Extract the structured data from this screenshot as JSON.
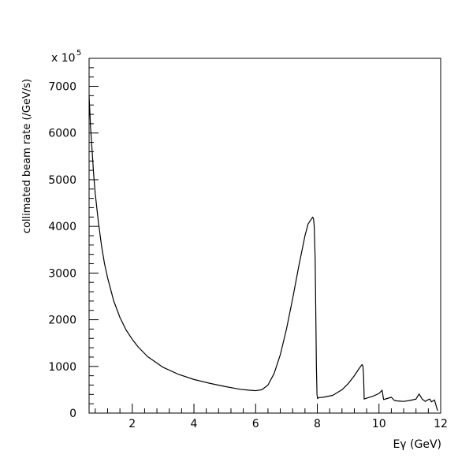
{
  "chart_data": {
    "type": "line",
    "title": "",
    "xlabel": "Eγ (GeV)",
    "ylabel": "collimated beam rate (/GeV/s)",
    "y_multiplier_label": "x 10",
    "y_multiplier_exponent": "5",
    "xlim": [
      0.6,
      12
    ],
    "ylim": [
      0,
      7600
    ],
    "x_ticks": [
      2,
      4,
      6,
      8,
      10,
      12
    ],
    "y_ticks": [
      0,
      1000,
      2000,
      3000,
      4000,
      5000,
      6000,
      7000
    ],
    "grid": false,
    "colors": {
      "line": "#000000",
      "axes": "#000000"
    },
    "series": [
      {
        "x": [
          0.6,
          0.65,
          0.7,
          0.75,
          0.8,
          0.9,
          1.0,
          1.1,
          1.2,
          1.4,
          1.6,
          1.8,
          2.0,
          2.2,
          2.5,
          3.0,
          3.5,
          4.0,
          4.5,
          5.0,
          5.5,
          5.8,
          6.0,
          6.2,
          6.4,
          6.6,
          6.8,
          7.0,
          7.2,
          7.4,
          7.6,
          7.7,
          7.8,
          7.85,
          7.88,
          7.9,
          7.93,
          7.95,
          7.97,
          7.99,
          8.01,
          8.02,
          8.05,
          8.2,
          8.5,
          8.8,
          9.0,
          9.2,
          9.35,
          9.45,
          9.48,
          9.5,
          9.52,
          9.6,
          9.8,
          10.0,
          10.1,
          10.15,
          10.2,
          10.4,
          10.5,
          10.6,
          10.8,
          11.0,
          11.2,
          11.3,
          11.4,
          11.5,
          11.6,
          11.65,
          11.7,
          11.8,
          11.9
        ],
        "y": [
          6800,
          6100,
          5600,
          5100,
          4700,
          4100,
          3600,
          3200,
          2900,
          2400,
          2050,
          1780,
          1580,
          1410,
          1210,
          980,
          830,
          720,
          640,
          570,
          510,
          490,
          480,
          500,
          600,
          850,
          1250,
          1800,
          2450,
          3150,
          3800,
          4050,
          4150,
          4200,
          4150,
          4000,
          3300,
          2200,
          1000,
          400,
          310,
          320,
          330,
          340,
          380,
          500,
          630,
          800,
          950,
          1040,
          1000,
          800,
          300,
          320,
          360,
          420,
          490,
          290,
          300,
          340,
          270,
          260,
          250,
          270,
          300,
          410,
          300,
          250,
          290,
          300,
          240,
          280,
          50
        ]
      }
    ]
  }
}
